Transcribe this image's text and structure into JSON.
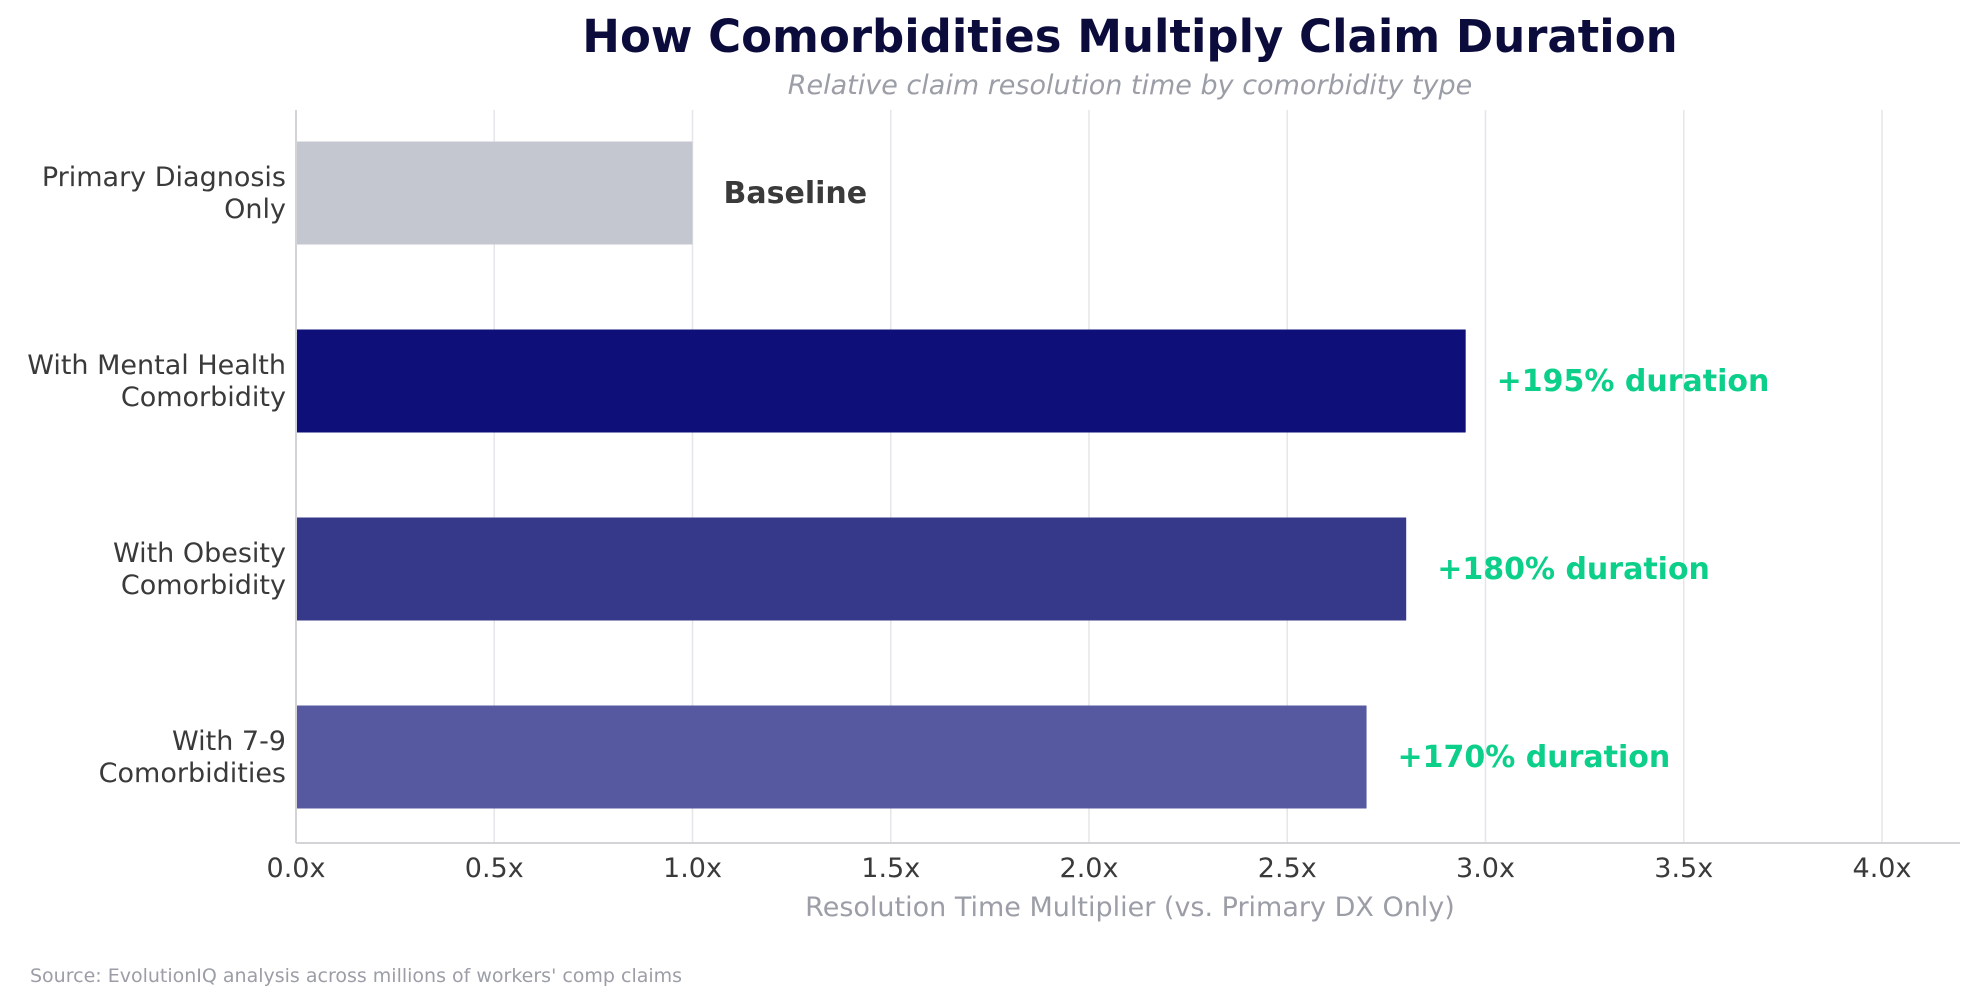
{
  "chart_data": {
    "type": "bar",
    "orientation": "horizontal",
    "title": "How Comorbidities Multiply Claim Duration",
    "subtitle": "Relative claim resolution time by comorbidity type",
    "xlabel": "Resolution Time Multiplier (vs. Primary DX Only)",
    "ylabel": "",
    "xlim": [
      0,
      4.2
    ],
    "x_ticks": [
      0,
      0.5,
      1,
      1.5,
      2,
      2.5,
      3,
      3.5,
      4
    ],
    "x_tick_labels": [
      "0.0x",
      "0.5x",
      "1.0x",
      "1.5x",
      "2.0x",
      "2.5x",
      "3.0x",
      "3.5x",
      "4.0x"
    ],
    "grid": "vertical",
    "categories": [
      [
        "Primary Diagnosis",
        "Only"
      ],
      [
        "With Mental Health",
        "Comorbidity"
      ],
      [
        "With Obesity",
        "Comorbidity"
      ],
      [
        "With 7-9",
        "Comorbidities"
      ]
    ],
    "values": [
      1.0,
      2.95,
      2.8,
      2.7
    ],
    "data_labels": [
      "Baseline",
      "+195% duration",
      "+180% duration",
      "+170% duration"
    ],
    "bar_colors": [
      "#c5c7d0",
      "#0e0f78",
      "#363889",
      "#5658a0"
    ],
    "label_colors": [
      "#3a3a3a",
      "#0ccf8a",
      "#0ccf8a",
      "#0ccf8a"
    ],
    "source": "Source: EvolutionIQ analysis across millions of workers' comp claims"
  },
  "colors": {
    "title": "#0c0c3c",
    "subtitle": "#9b9ea6",
    "category_text": "#3a3a3a",
    "tick_text": "#3a3a3a",
    "axis_label": "#9b9ea6",
    "grid": "#e6e6ea",
    "axis_line": "#d4d4d8",
    "source": "#9b9ea6"
  }
}
